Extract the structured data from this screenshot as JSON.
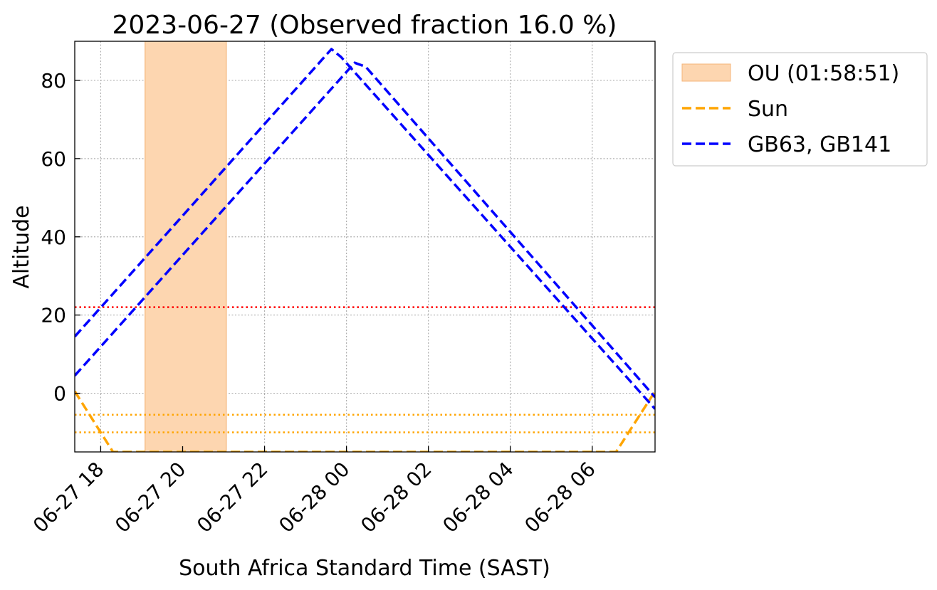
{
  "chart_data": {
    "type": "line",
    "title": "2023-06-27 (Observed fraction 16.0 %)",
    "xlabel": "South Africa Standard Time (SAST)",
    "ylabel": "Altitude",
    "xlim": [
      "2023-06-27 17:22",
      "2023-06-28 07:32"
    ],
    "ylim": [
      -15,
      90
    ],
    "x_ticks": [
      {
        "time": "2023-06-27 18:00",
        "label": "06-27 18"
      },
      {
        "time": "2023-06-27 20:00",
        "label": "06-27 20"
      },
      {
        "time": "2023-06-27 22:00",
        "label": "06-27 22"
      },
      {
        "time": "2023-06-28 00:00",
        "label": "06-28 00"
      },
      {
        "time": "2023-06-28 02:00",
        "label": "06-28 02"
      },
      {
        "time": "2023-06-28 04:00",
        "label": "06-28 04"
      },
      {
        "time": "2023-06-28 06:00",
        "label": "06-28 06"
      }
    ],
    "y_ticks": [
      0,
      20,
      40,
      60,
      80
    ],
    "grid": true,
    "legend_position": "outside top-right",
    "shaded_span": {
      "name": "OU (01:58:51)",
      "start": "2023-06-27 19:05",
      "end": "2023-06-27 21:04",
      "color": "#fdd6b0",
      "edge_color": "#f5b57a"
    },
    "series": [
      {
        "name": "Sun",
        "color": "#ffa500",
        "style": "dashed",
        "points": [
          {
            "x": "2023-06-27 17:22",
            "y": 0.5
          },
          {
            "x": "2023-06-27 18:18",
            "y": -15
          },
          {
            "x": "2023-06-28 06:35",
            "y": -15
          },
          {
            "x": "2023-06-28 07:32",
            "y": 0.5
          }
        ]
      },
      {
        "name": "GB63, GB141",
        "color": "#0000ff",
        "style": "dashed",
        "points": [
          {
            "x": "2023-06-27 17:22",
            "y": 14.5
          },
          {
            "x": "2023-06-27 23:38",
            "y": 88
          },
          {
            "x": "2023-06-27 23:52",
            "y": 86
          },
          {
            "x": "2023-06-28 07:32",
            "y": -4
          }
        ]
      },
      {
        "name": "",
        "color": "#0000ff",
        "style": "dashed",
        "points": [
          {
            "x": "2023-06-27 17:22",
            "y": 4.5
          },
          {
            "x": "2023-06-28 00:12",
            "y": 84.5
          },
          {
            "x": "2023-06-28 00:28",
            "y": 83.5
          },
          {
            "x": "2023-06-28 07:32",
            "y": -1
          }
        ]
      }
    ],
    "reference_lines": [
      {
        "y": 22,
        "color": "#ff0000",
        "style": "dotted"
      },
      {
        "y": -5.5,
        "color": "#ffa500",
        "style": "dotted"
      },
      {
        "y": -10,
        "color": "#ffa500",
        "style": "dotted"
      }
    ]
  }
}
